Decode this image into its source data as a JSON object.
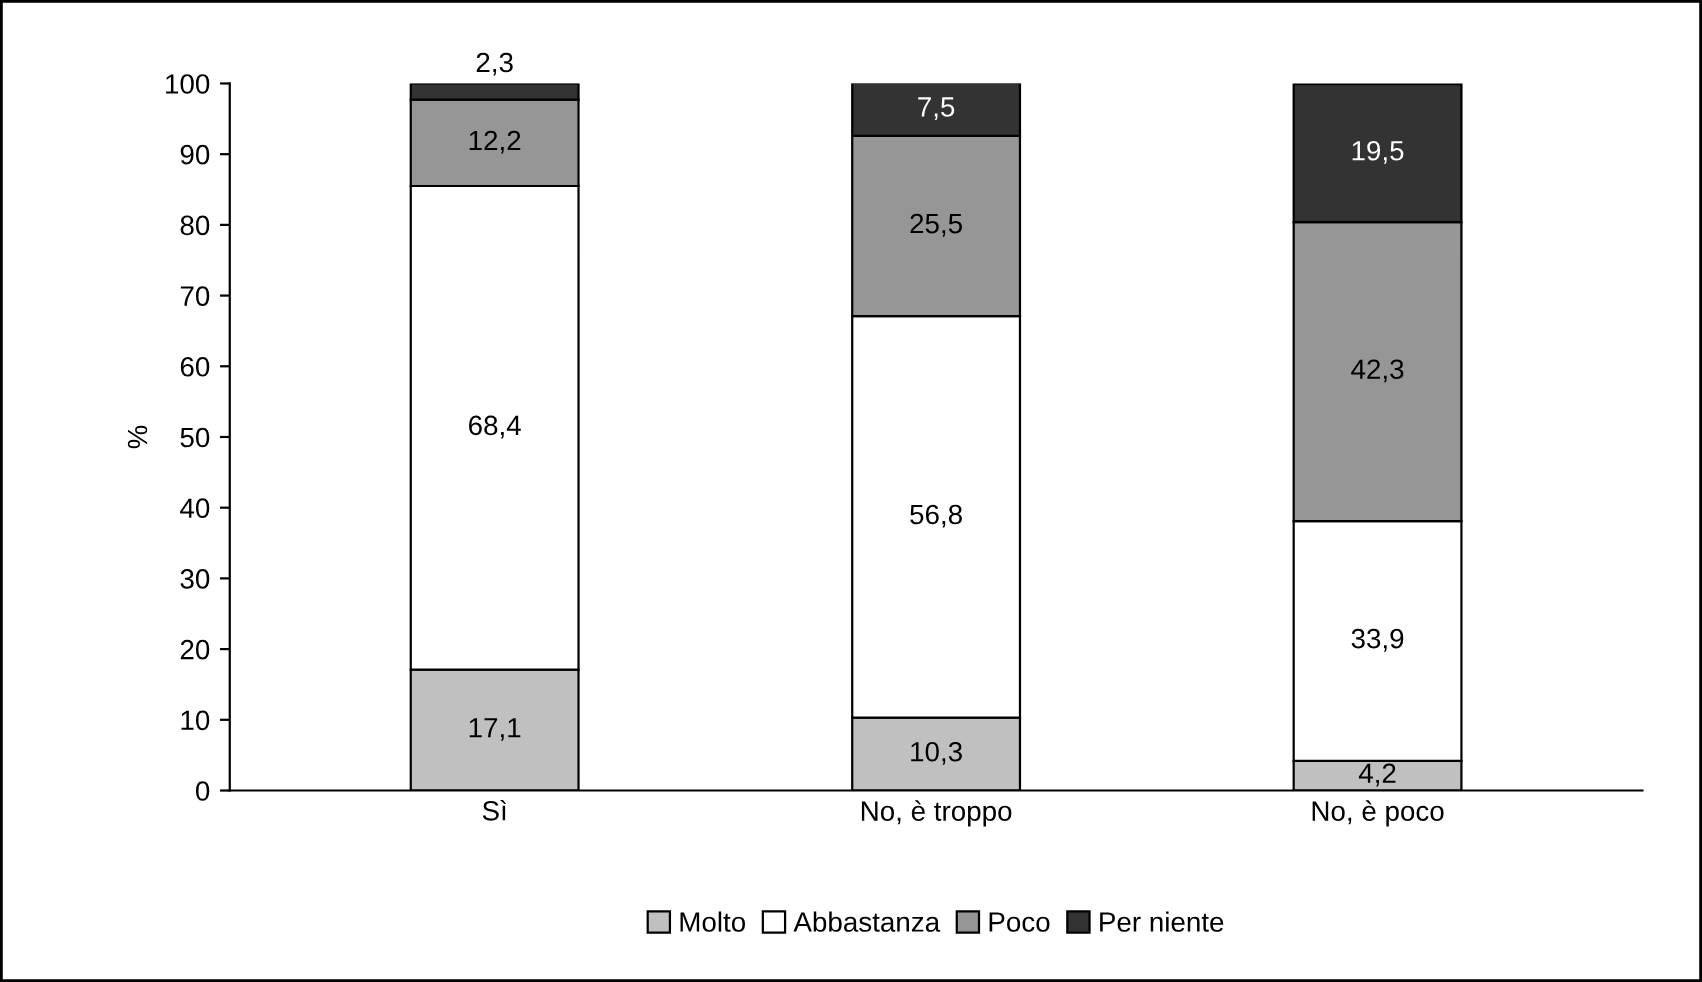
{
  "chart_data": {
    "type": "bar",
    "stacked": true,
    "categories": [
      "Sì",
      "No, è troppo",
      "No, è poco"
    ],
    "ylabel": "%",
    "ylim": [
      0,
      100
    ],
    "yticks": [
      0,
      10,
      20,
      30,
      40,
      50,
      60,
      70,
      80,
      90,
      100
    ],
    "grid": false,
    "legend": "bottom",
    "series": [
      {
        "name": "Molto",
        "color": "#c0c0c0",
        "values": [
          17.1,
          10.3,
          4.2
        ],
        "value_labels": [
          "17,1",
          "10,3",
          "4,2"
        ]
      },
      {
        "name": "Abbastanza",
        "color": "#ffffff",
        "values": [
          68.4,
          56.8,
          33.9
        ],
        "value_labels": [
          "68,4",
          "56,8",
          "33,9"
        ]
      },
      {
        "name": "Poco",
        "color": "#969696",
        "values": [
          12.2,
          25.5,
          42.3
        ],
        "value_labels": [
          "12,2",
          "25,5",
          "42,3"
        ]
      },
      {
        "name": "Per niente",
        "color": "#333333",
        "values": [
          2.3,
          7.5,
          19.5
        ],
        "value_labels": [
          "2,3",
          "7,5",
          "19,5"
        ]
      }
    ]
  }
}
